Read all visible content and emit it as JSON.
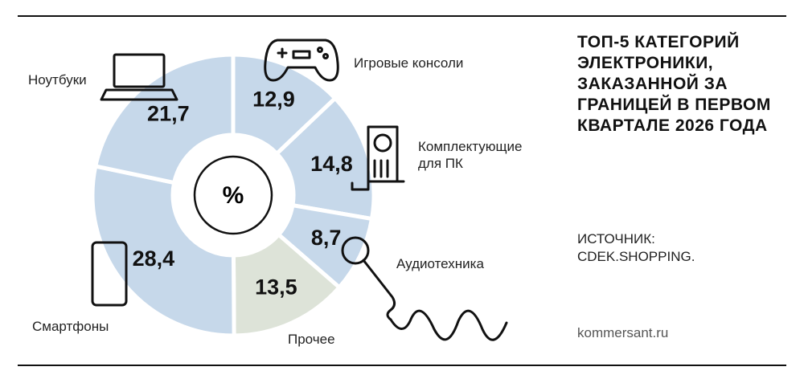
{
  "chart_data": {
    "type": "donut",
    "title": "ТОП-5 КАТЕГОРИЙ ЭЛЕКТРОНИКИ, ЗАКАЗАННОЙ ЗА ГРАНИЦЕЙ В ПЕРВОМ КВАРТАЛЕ 2026 ГОДА",
    "source": "ИСТОЧНИК: CDEK.SHOPPING.",
    "footer": "kommersant.ru",
    "center_label": "%",
    "categories": [
      "Игровые консоли",
      "Комплектующие для ПК",
      "Аудиотехника",
      "Прочее",
      "Смартфоны",
      "Ноутбуки"
    ],
    "values": [
      12.9,
      14.8,
      8.7,
      13.5,
      28.4,
      21.7
    ],
    "value_labels": [
      "12,9",
      "14,8",
      "8,7",
      "13,5",
      "28,4",
      "21,7"
    ],
    "colors": [
      "#c6d8ea",
      "#c6d8ea",
      "#c6d8ea",
      "#dde3d8",
      "#c6d8ea",
      "#c6d8ea"
    ]
  }
}
